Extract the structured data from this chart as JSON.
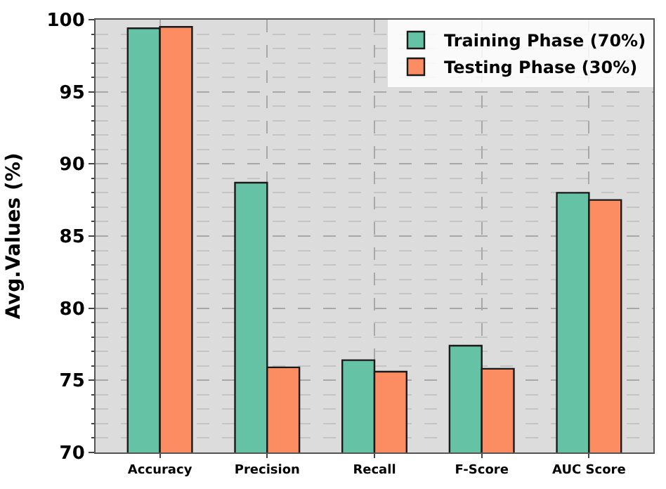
{
  "chart_data": {
    "type": "bar",
    "ylabel": "Avg.Values (%)",
    "categories": [
      "Accuracy",
      "Precision",
      "Recall",
      "F-Score",
      "AUC Score"
    ],
    "series": [
      {
        "name": "Training Phase (70%)",
        "color": "#66c2a5",
        "values": [
          99.4,
          88.7,
          76.4,
          77.4,
          88.0
        ]
      },
      {
        "name": "Testing Phase (30%)",
        "color": "#fc8d62",
        "values": [
          99.5,
          75.9,
          75.6,
          75.8,
          87.5
        ]
      }
    ],
    "ylim": [
      70,
      100
    ],
    "yticks": [
      70,
      75,
      80,
      85,
      90,
      95,
      100
    ],
    "grid": true,
    "legend": "top right"
  }
}
